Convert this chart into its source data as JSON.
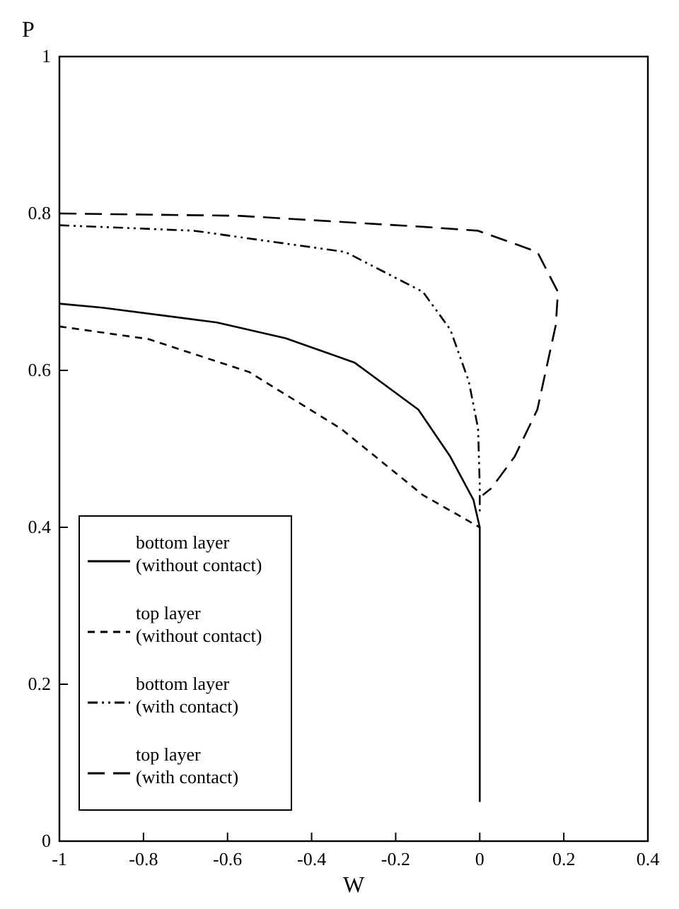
{
  "chart_data": {
    "type": "line",
    "xlabel": "W",
    "ylabel": "P",
    "xlim": [
      -1,
      0.4
    ],
    "ylim": [
      0,
      1
    ],
    "xticks": [
      -1,
      -0.8,
      -0.6,
      -0.4,
      -0.2,
      0,
      0.2,
      0.4
    ],
    "yticks": [
      0,
      0.2,
      0.4,
      0.6,
      0.8,
      1
    ],
    "grid": false,
    "legend": "bottom left",
    "marker": "none",
    "series": [
      {
        "name": "bottom layer\n(without contact)",
        "color": "#000000",
        "line_style": "solid",
        "x": [
          -1,
          -0.898,
          -0.625,
          -0.462,
          -0.298,
          -0.146,
          -0.07,
          -0.015,
          0,
          0
        ],
        "values": [
          0.685,
          0.68,
          0.661,
          0.641,
          0.61,
          0.55,
          0.49,
          0.435,
          0.4,
          0.05
        ]
      },
      {
        "name": "top layer\n(without contact)",
        "color": "#000000",
        "line_style": "dashed",
        "x": [
          -1,
          -0.789,
          -0.549,
          -0.331,
          -0.135,
          0
        ],
        "values": [
          0.656,
          0.64,
          0.598,
          0.526,
          0.441,
          0.4
        ]
      },
      {
        "name": "bottom layer\n(with contact)",
        "color": "#000000",
        "line_style": "dashdot",
        "x": [
          -1,
          -0.68,
          -0.32,
          -0.135,
          -0.07,
          -0.026,
          -0.004,
          0,
          0
        ],
        "values": [
          0.785,
          0.778,
          0.751,
          0.7,
          0.652,
          0.586,
          0.526,
          0.453,
          0.42
        ]
      },
      {
        "name": "top layer\n(with contact)",
        "color": "#000000",
        "line_style": "longdash",
        "x": [
          -1,
          -0.571,
          -0.135,
          -0.004,
          0.137,
          0.186,
          0.181,
          0.137,
          0.083,
          0.028,
          0.007
        ],
        "values": [
          0.8,
          0.797,
          0.783,
          0.778,
          0.751,
          0.7,
          0.658,
          0.55,
          0.49,
          0.45,
          0.441
        ]
      }
    ]
  }
}
